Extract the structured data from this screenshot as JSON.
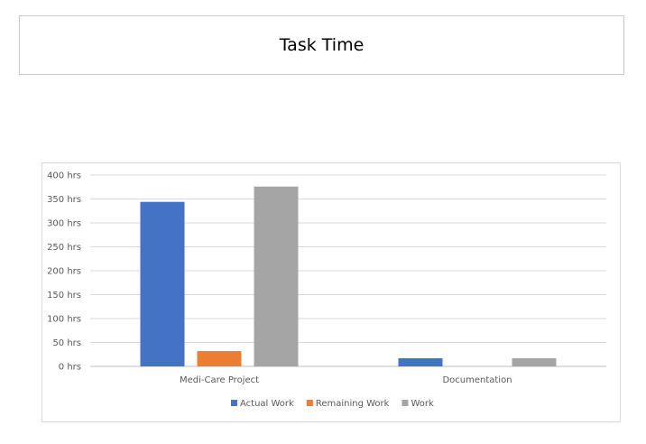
{
  "title": "Task Time",
  "chart_data": {
    "type": "bar",
    "categories": [
      "Medi-Care Project",
      "Documentation"
    ],
    "series": [
      {
        "name": "Actual Work",
        "color": "#4472C4",
        "values": [
          344,
          17
        ]
      },
      {
        "name": "Remaining Work",
        "color": "#ED7D31",
        "values": [
          32,
          0
        ]
      },
      {
        "name": "Work",
        "color": "#A5A5A5",
        "values": [
          376,
          17
        ]
      }
    ],
    "y_ticks": [
      "0 hrs",
      "50 hrs",
      "100 hrs",
      "150 hrs",
      "200 hrs",
      "250 hrs",
      "300 hrs",
      "350 hrs",
      "400 hrs"
    ],
    "ylim": [
      0,
      400
    ],
    "grid": true,
    "legend_position": "bottom"
  }
}
